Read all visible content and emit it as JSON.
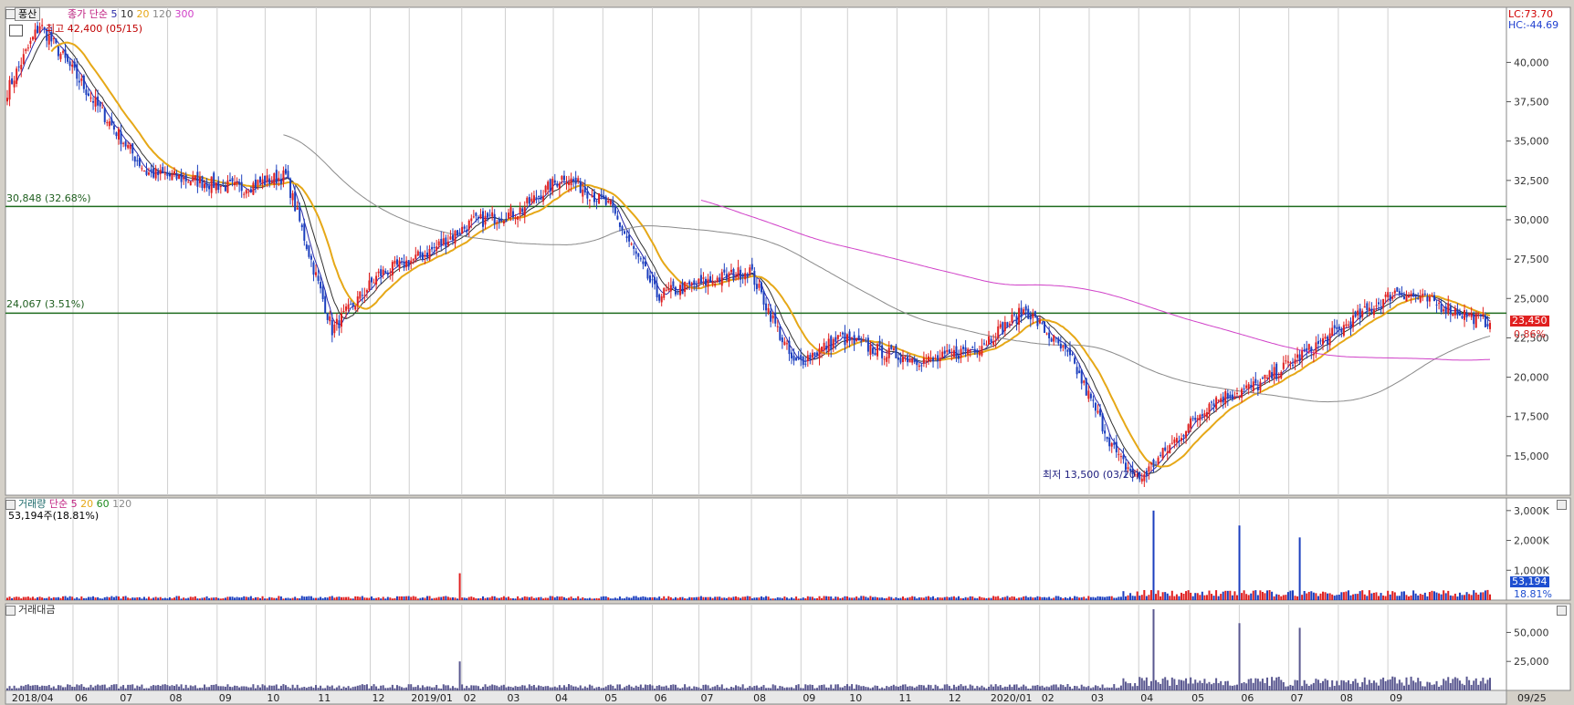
{
  "header": {
    "stock_button": "풍산",
    "price_legend": {
      "name": "종가",
      "method": "단순",
      "periods": [
        "5",
        "10",
        "20",
        "120",
        "300"
      ]
    },
    "high_label": "최고 42,400 (05/15)",
    "low_label": "최저 13,500 (03/20)",
    "lc": "LC:73.70",
    "hc": "HC:-44.69"
  },
  "colors": {
    "up": "#e02020",
    "down": "#1c3fbf",
    "ma5": "#2a2aa8",
    "ma10": "#303030",
    "ma20": "#e6a817",
    "ma120": "#8a8a8a",
    "ma300": "#d040c8",
    "level": "#1e6b1e",
    "volume_bar": "#5a5890"
  },
  "chart_data": [
    {
      "type": "candlestick",
      "title": "",
      "ylim": [
        12500,
        43500
      ],
      "y_ticks": [
        "15,000",
        "17,500",
        "20,000",
        "22,500",
        "25,000",
        "27,500",
        "30,000",
        "32,500",
        "35,000",
        "37,500",
        "40,000"
      ],
      "x_ticks": [
        "2018/04",
        "06",
        "07",
        "08",
        "09",
        "10",
        "11",
        "12",
        "2019/01",
        "02",
        "03",
        "04",
        "05",
        "06",
        "07",
        "08",
        "09",
        "10",
        "11",
        "12",
        "2020/01",
        "02",
        "03",
        "04",
        "05",
        "06",
        "07",
        "08",
        "09"
      ],
      "x_last_label": "09/25",
      "close_path": [
        [
          "2018/04",
          38200
        ],
        [
          "05/15",
          42400
        ],
        [
          "06",
          37000
        ],
        [
          "07",
          33000
        ],
        [
          "08",
          32500
        ],
        [
          "09",
          32000
        ],
        [
          "10",
          32800
        ],
        [
          "11",
          23000
        ],
        [
          "11",
          26500
        ],
        [
          "12",
          27800
        ],
        [
          "2019/01",
          29800
        ],
        [
          "02",
          30500
        ],
        [
          "03",
          32800
        ],
        [
          "04",
          30800
        ],
        [
          "05",
          25200
        ],
        [
          "06",
          26000
        ],
        [
          "07",
          26800
        ],
        [
          "08",
          20800
        ],
        [
          "09",
          22500
        ],
        [
          "10",
          21500
        ],
        [
          "11",
          21000
        ],
        [
          "12",
          22000
        ],
        [
          "2020/01",
          24300
        ],
        [
          "02",
          21000
        ],
        [
          "03",
          14800
        ],
        [
          "03/20",
          13500
        ],
        [
          "04",
          18500
        ],
        [
          "05",
          19500
        ],
        [
          "06",
          21500
        ],
        [
          "07",
          23500
        ],
        [
          "08",
          25500
        ],
        [
          "09",
          24500
        ],
        [
          "09/25",
          23450
        ]
      ],
      "ma_series": [
        {
          "name": "5",
          "color": "#2a2aa8"
        },
        {
          "name": "10",
          "color": "#303030"
        },
        {
          "name": "20",
          "color": "#e6a817"
        },
        {
          "name": "120",
          "color": "#8a8a8a"
        },
        {
          "name": "300",
          "color": "#d040c8"
        }
      ],
      "horizontal_lines": [
        {
          "value": 30848,
          "label": "30,848 (32.68%)"
        },
        {
          "value": 24067,
          "label": "24,067 (3.51%)"
        }
      ],
      "last_price": "23,450",
      "last_change": "0.86%",
      "extremes": {
        "high": 42400,
        "high_date": "05/15",
        "low": 13500,
        "low_date": "03/20"
      }
    },
    {
      "type": "bar",
      "title": "거래량",
      "legend": {
        "method": "단순",
        "periods": [
          "5",
          "20",
          "60",
          "120"
        ]
      },
      "current_label": "53,194주(18.81%)",
      "y_ticks": [
        "1,000K",
        "2,000K",
        "3,000K"
      ],
      "ylim": [
        0,
        3300
      ],
      "unit": "K",
      "last_value": "53,194",
      "last_pct": "18.81%",
      "spikes": [
        {
          "date": "2019/02",
          "value": 900
        },
        {
          "date": "2020/04",
          "value": 3000
        },
        {
          "date": "2020/06",
          "value": 2500
        },
        {
          "date": "2020/07",
          "value": 2100
        }
      ]
    },
    {
      "type": "bar",
      "title": "거래대금",
      "y_ticks": [
        "25,000",
        "50,000"
      ],
      "ylim": [
        0,
        70000
      ],
      "spikes": [
        {
          "date": "2019/02",
          "value": 25000
        },
        {
          "date": "2020/04",
          "value": 70000
        },
        {
          "date": "2020/06",
          "value": 58000
        },
        {
          "date": "2020/07",
          "value": 54000
        }
      ]
    }
  ]
}
